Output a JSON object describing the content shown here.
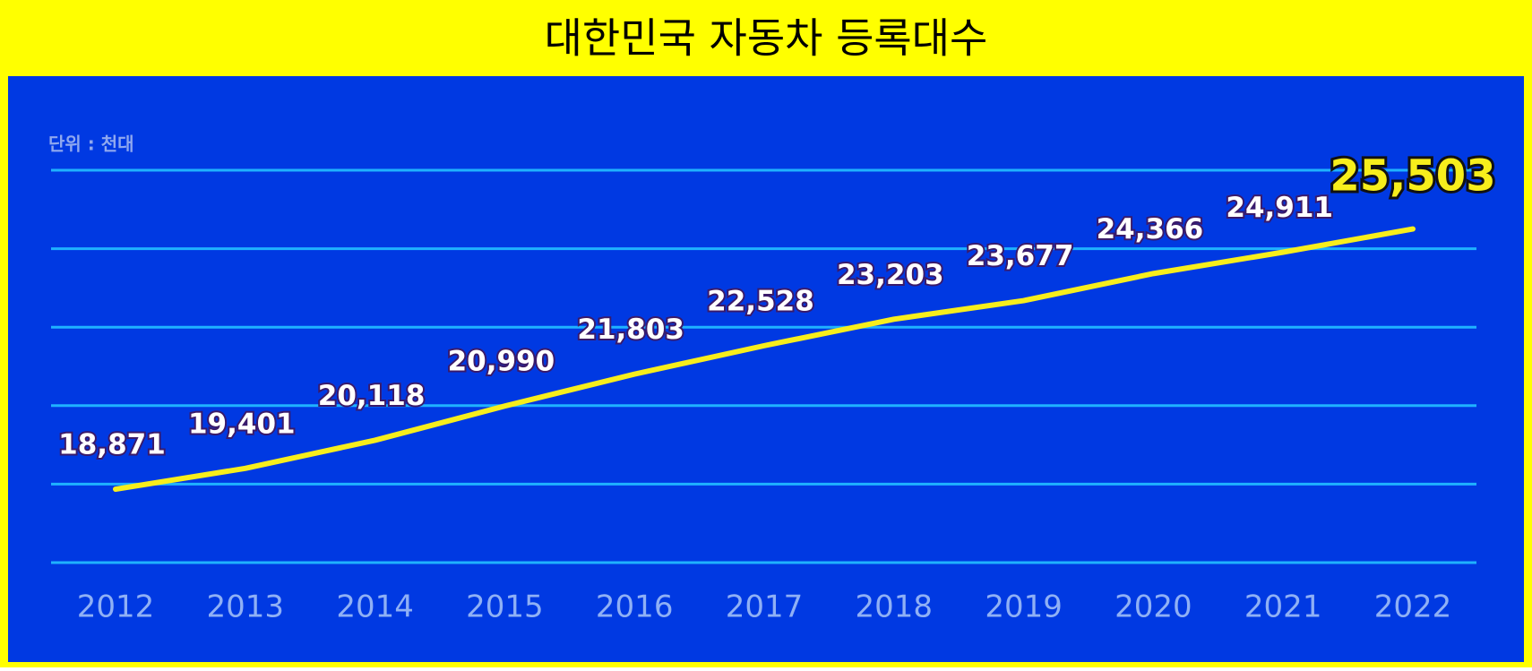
{
  "chart_data": {
    "type": "line",
    "title": "대한민국 자동차 등록대수",
    "unit_note": "단위 : 천대",
    "x": [
      "2012",
      "2013",
      "2014",
      "2015",
      "2016",
      "2017",
      "2018",
      "2019",
      "2020",
      "2021",
      "2022"
    ],
    "series": [
      {
        "color": "#f7ee1c",
        "values": [
          18871,
          19401,
          20118,
          20990,
          21803,
          22528,
          23203,
          23677,
          24366,
          24911,
          25503
        ],
        "value_labels": [
          "18,871",
          "19,401",
          "20,118",
          "20,990",
          "21,803",
          "22,528",
          "23,203",
          "23,677",
          "24,366",
          "24,911",
          "25,503"
        ]
      }
    ],
    "ylim": [
      17000,
      27000
    ],
    "yticks": [
      17000,
      19000,
      21000,
      23000,
      25000,
      27000
    ],
    "grid": true
  }
}
